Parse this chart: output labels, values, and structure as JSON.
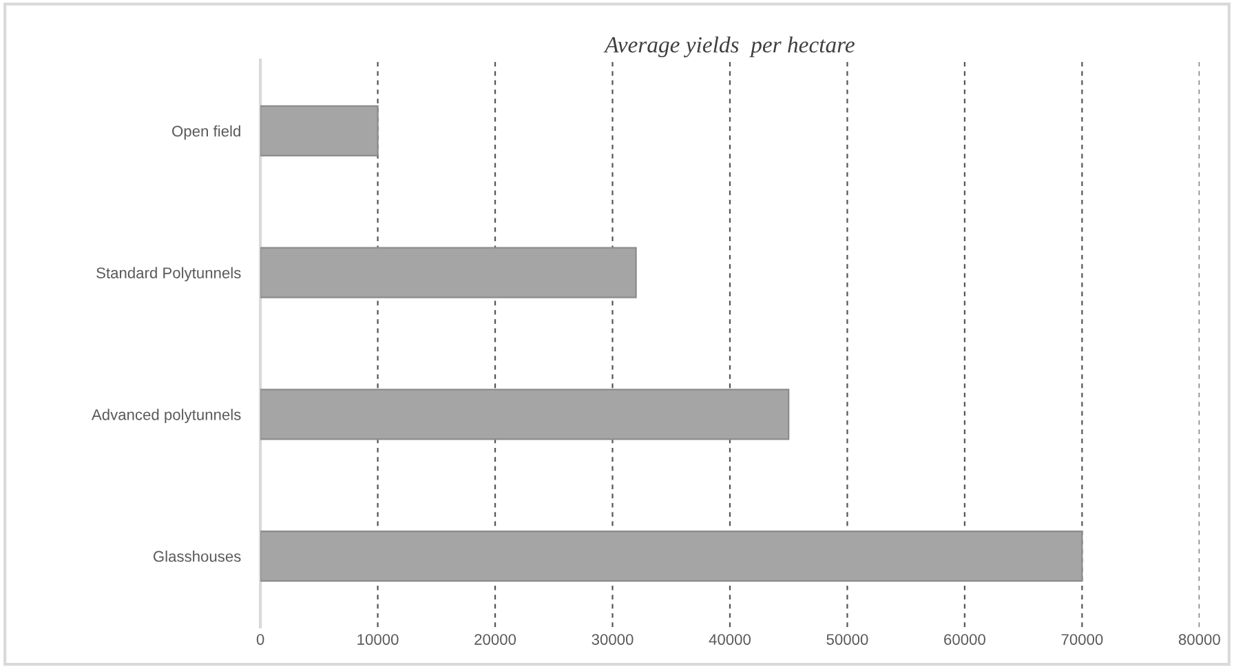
{
  "chart_data": {
    "type": "bar",
    "orientation": "horizontal",
    "title": "Average yields  per hectare",
    "categories": [
      "Open field",
      "Standard Polytunnels",
      "Advanced polytunnels",
      "Glasshouses"
    ],
    "values": [
      10000,
      32000,
      45000,
      70000
    ],
    "color": "#a5a5a5",
    "xlim": [
      0,
      80000
    ],
    "xticks": [
      0,
      10000,
      20000,
      30000,
      40000,
      50000,
      60000,
      70000,
      80000
    ],
    "grid": "x"
  }
}
